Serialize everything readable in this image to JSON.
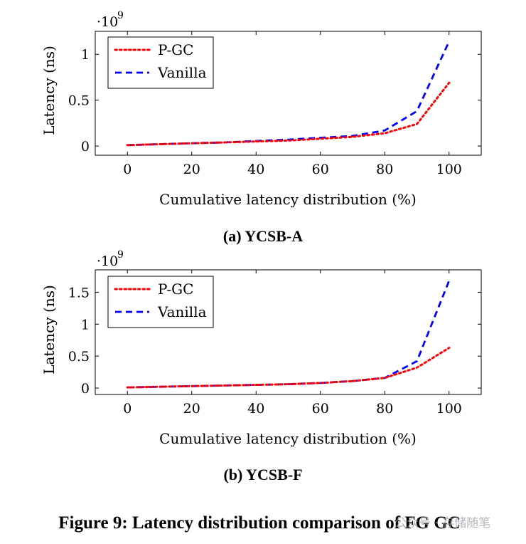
{
  "figure_caption": "Figure 9: Latency distribution comparison of FG GC",
  "watermark": "公众号 · 存储随笔",
  "colors": {
    "pgc": "#ff0000",
    "vanilla": "#0000ff",
    "axis": "#000000"
  },
  "chart_data": [
    {
      "type": "line",
      "caption": "(a) YCSB-A",
      "xlabel": "Cumulative latency distribution (%)",
      "ylabel": "Latency (ns)",
      "y_scale_label": "·10",
      "y_scale_exp": "9",
      "xlim": [
        -10,
        110
      ],
      "ylim": [
        -0.1,
        1.25
      ],
      "xticks": [
        0,
        20,
        40,
        60,
        80,
        100
      ],
      "xtick_labels": [
        "0",
        "20",
        "40",
        "60",
        "80",
        "100"
      ],
      "yticks": [
        0,
        0.5,
        1
      ],
      "ytick_labels": [
        "0",
        "0.5",
        "1"
      ],
      "legend_position": "top-left",
      "x": [
        0,
        10,
        20,
        30,
        40,
        50,
        60,
        70,
        80,
        90,
        100
      ],
      "series": [
        {
          "name": "P-GC",
          "style": "dotted",
          "color": "#ff0000",
          "values": [
            0.01,
            0.02,
            0.03,
            0.04,
            0.05,
            0.06,
            0.08,
            0.1,
            0.14,
            0.24,
            0.69
          ]
        },
        {
          "name": "Vanilla",
          "style": "dashed",
          "color": "#0000ff",
          "values": [
            0.01,
            0.02,
            0.03,
            0.04,
            0.055,
            0.07,
            0.09,
            0.11,
            0.17,
            0.38,
            1.14
          ]
        }
      ]
    },
    {
      "type": "line",
      "caption": "(b) YCSB-F",
      "xlabel": "Cumulative latency distribution (%)",
      "ylabel": "Latency (ns)",
      "y_scale_label": "·10",
      "y_scale_exp": "9",
      "xlim": [
        -10,
        110
      ],
      "ylim": [
        -0.1,
        1.85
      ],
      "xticks": [
        0,
        20,
        40,
        60,
        80,
        100
      ],
      "xtick_labels": [
        "0",
        "20",
        "40",
        "60",
        "80",
        "100"
      ],
      "yticks": [
        0,
        0.5,
        1,
        1.5
      ],
      "ytick_labels": [
        "0",
        "0.5",
        "1",
        "1.5"
      ],
      "legend_position": "top-left",
      "x": [
        0,
        10,
        20,
        30,
        40,
        50,
        60,
        70,
        80,
        90,
        100
      ],
      "series": [
        {
          "name": "P-GC",
          "style": "dotted",
          "color": "#ff0000",
          "values": [
            0.01,
            0.02,
            0.03,
            0.04,
            0.05,
            0.06,
            0.08,
            0.11,
            0.16,
            0.32,
            0.63
          ]
        },
        {
          "name": "Vanilla",
          "style": "dashed",
          "color": "#0000ff",
          "values": [
            0.01,
            0.02,
            0.03,
            0.04,
            0.05,
            0.06,
            0.08,
            0.11,
            0.16,
            0.42,
            1.68
          ]
        }
      ]
    }
  ]
}
